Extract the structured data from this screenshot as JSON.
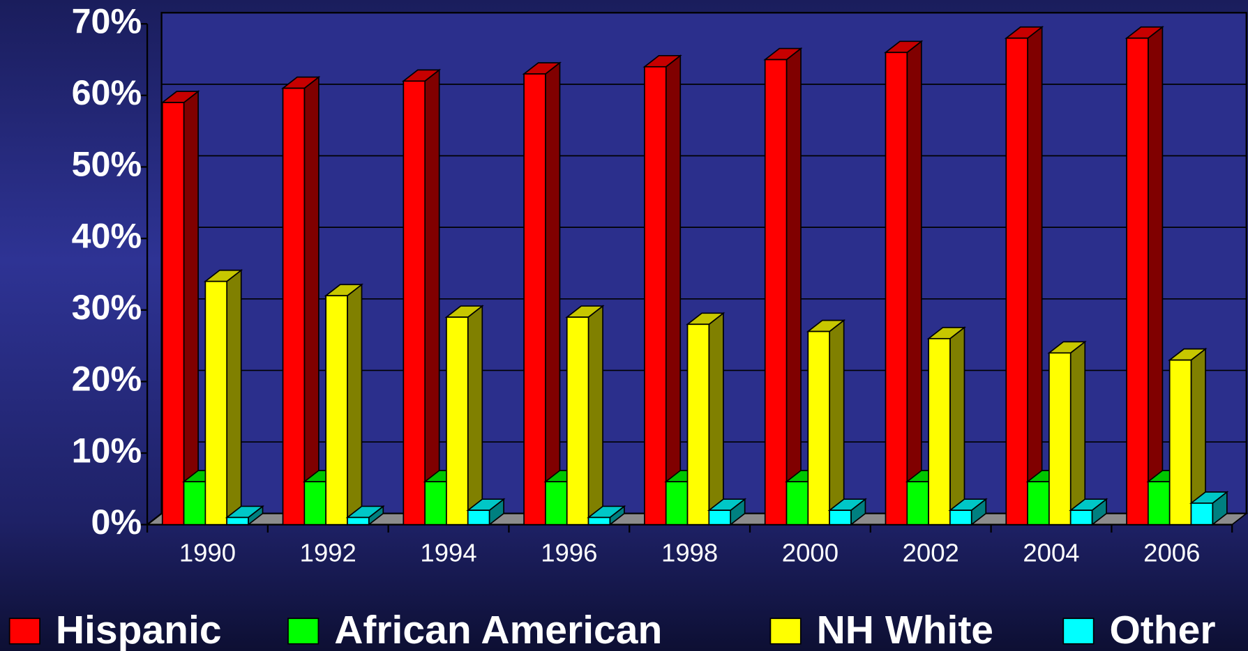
{
  "chart_data": {
    "type": "bar3d",
    "categories": [
      "1990",
      "1992",
      "1994",
      "1996",
      "1998",
      "2000",
      "2002",
      "2004",
      "2006"
    ],
    "series": [
      {
        "name": "Hispanic",
        "color": "#ff0000",
        "values": [
          59,
          61,
          62,
          63,
          64,
          65,
          66,
          68,
          68
        ]
      },
      {
        "name": "African American",
        "color": "#00ff00",
        "values": [
          6,
          6,
          6,
          6,
          6,
          6,
          6,
          6,
          6
        ]
      },
      {
        "name": "NH White",
        "color": "#ffff00",
        "values": [
          34,
          32,
          29,
          29,
          28,
          27,
          26,
          24,
          23
        ]
      },
      {
        "name": "Other",
        "color": "#00ffff",
        "values": [
          1,
          1,
          2,
          1,
          2,
          2,
          2,
          2,
          3
        ]
      }
    ],
    "ylim": [
      0,
      70
    ],
    "yticks": [
      {
        "value": 0,
        "label": "0%"
      },
      {
        "value": 10,
        "label": "10%"
      },
      {
        "value": 20,
        "label": "20%"
      },
      {
        "value": 30,
        "label": "30%"
      },
      {
        "value": 40,
        "label": "40%"
      },
      {
        "value": 50,
        "label": "50%"
      },
      {
        "value": 60,
        "label": "60%"
      },
      {
        "value": 70,
        "label": "70%"
      }
    ],
    "grid": true,
    "legend": "bottom"
  }
}
